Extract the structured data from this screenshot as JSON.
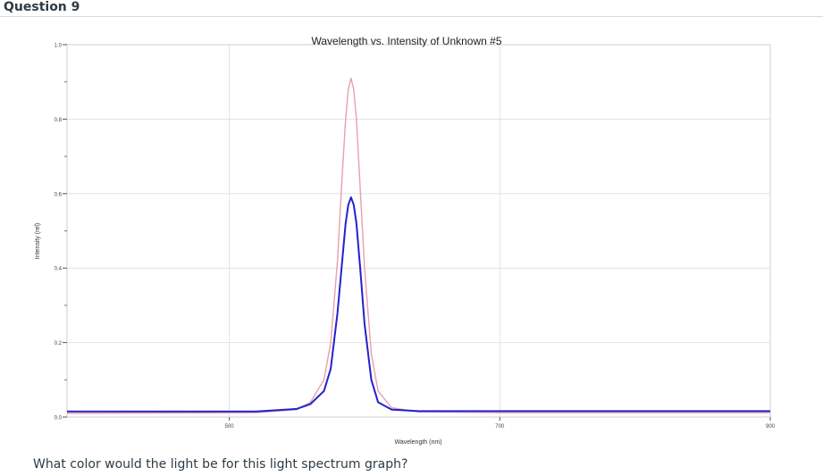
{
  "question": {
    "title": "Question 9",
    "prompt": "What color would the light be for this light spectrum graph?"
  },
  "chart_data": {
    "type": "line",
    "title": "Wavelength vs. Intensity of Unknown #5",
    "xlabel": "Wavelength (nm)",
    "ylabel": "Intensity (rel)",
    "xlim": [
      380,
      900
    ],
    "ylim": [
      0,
      1.0
    ],
    "x_ticks": [
      500,
      700,
      900
    ],
    "y_ticks": [
      "0.0",
      "0.2",
      "0.4",
      "0.6",
      "0.8",
      "1.0"
    ],
    "grid": true,
    "series": [
      {
        "color": "#e8a0a8",
        "x": [
          380,
          520,
          550,
          560,
          570,
          575,
          580,
          583,
          586,
          588,
          590,
          592,
          594,
          597,
          600,
          605,
          610,
          620,
          640,
          700,
          800,
          900
        ],
        "y": [
          0.01,
          0.012,
          0.02,
          0.04,
          0.1,
          0.2,
          0.42,
          0.62,
          0.8,
          0.88,
          0.91,
          0.88,
          0.8,
          0.6,
          0.4,
          0.17,
          0.07,
          0.025,
          0.014,
          0.012,
          0.012,
          0.012
        ]
      },
      {
        "color": "#2222cc",
        "x": [
          380,
          520,
          550,
          560,
          570,
          575,
          580,
          583,
          586,
          588,
          590,
          592,
          594,
          597,
          600,
          605,
          610,
          620,
          640,
          700,
          800,
          900
        ],
        "y": [
          0.015,
          0.015,
          0.022,
          0.035,
          0.07,
          0.13,
          0.28,
          0.4,
          0.52,
          0.57,
          0.59,
          0.57,
          0.52,
          0.39,
          0.25,
          0.1,
          0.04,
          0.02,
          0.016,
          0.016,
          0.016,
          0.016
        ]
      }
    ]
  }
}
